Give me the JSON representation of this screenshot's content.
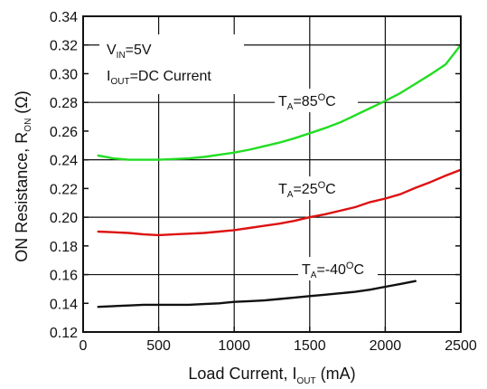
{
  "chart_data": {
    "type": "line",
    "xlabel": {
      "main": "Load Current, I",
      "sub": "OUT",
      "tail": " (mA)"
    },
    "ylabel": {
      "main": "ON Resistance, R",
      "sub": "ON",
      "tail": " (Ω)"
    },
    "xlim": [
      0,
      2500
    ],
    "ylim": [
      0.12,
      0.34
    ],
    "x_ticks": [
      0,
      500,
      1000,
      1500,
      2000,
      2500
    ],
    "y_ticks": [
      0.12,
      0.14,
      0.16,
      0.18,
      0.2,
      0.22,
      0.24,
      0.26,
      0.28,
      0.3,
      0.32,
      0.34
    ],
    "x_tick_labels": [
      "0",
      "500",
      "1000",
      "1500",
      "2000",
      "2500"
    ],
    "y_tick_labels": [
      "0.12",
      "0.14",
      "0.16",
      "0.18",
      "0.20",
      "0.22",
      "0.24",
      "0.26",
      "0.28",
      "0.30",
      "0.32",
      "0.34"
    ],
    "grid": true,
    "conditions": {
      "line1": {
        "main": "V",
        "sub": "IN",
        "tail": "=5V"
      },
      "line2": {
        "main": "I",
        "sub": "OUT",
        "tail": "=DC Current"
      }
    },
    "series": [
      {
        "label": {
          "main": "T",
          "sub": "A",
          "mid": "=85",
          "sup": "O",
          "tail": "C"
        },
        "color": "#22dd22",
        "x": [
          100,
          200,
          300,
          400,
          500,
          600,
          700,
          800,
          900,
          1000,
          1100,
          1200,
          1300,
          1400,
          1500,
          1600,
          1700,
          1800,
          1900,
          2000,
          2100,
          2200,
          2300,
          2400,
          2500
        ],
        "y": [
          0.243,
          0.241,
          0.24,
          0.24,
          0.24,
          0.2405,
          0.241,
          0.242,
          0.2435,
          0.245,
          0.247,
          0.2495,
          0.252,
          0.255,
          0.2585,
          0.262,
          0.266,
          0.271,
          0.276,
          0.281,
          0.2865,
          0.293,
          0.2995,
          0.3065,
          0.32
        ]
      },
      {
        "label": {
          "main": "T",
          "sub": "A",
          "mid": "=25",
          "sup": "O",
          "tail": "C"
        },
        "color": "#dd1111",
        "x": [
          100,
          200,
          300,
          400,
          500,
          600,
          700,
          800,
          900,
          1000,
          1100,
          1200,
          1300,
          1400,
          1500,
          1600,
          1700,
          1800,
          1900,
          2000,
          2100,
          2200,
          2300,
          2400,
          2500
        ],
        "y": [
          0.19,
          0.1895,
          0.189,
          0.188,
          0.1875,
          0.188,
          0.1885,
          0.189,
          0.19,
          0.191,
          0.1925,
          0.194,
          0.1955,
          0.1975,
          0.2,
          0.202,
          0.2045,
          0.207,
          0.2105,
          0.213,
          0.216,
          0.2205,
          0.2245,
          0.229,
          0.233
        ]
      },
      {
        "label": {
          "main": "T",
          "sub": "A",
          "mid": "=-40",
          "sup": "O",
          "tail": "C"
        },
        "color": "#111111",
        "x": [
          100,
          200,
          300,
          400,
          500,
          600,
          700,
          800,
          900,
          1000,
          1100,
          1200,
          1300,
          1400,
          1500,
          1600,
          1700,
          1800,
          1900,
          2000,
          2100,
          2200
        ],
        "y": [
          0.1375,
          0.138,
          0.1385,
          0.139,
          0.139,
          0.139,
          0.139,
          0.1395,
          0.14,
          0.141,
          0.1415,
          0.142,
          0.143,
          0.144,
          0.145,
          0.146,
          0.147,
          0.148,
          0.1495,
          0.1515,
          0.1535,
          0.1555
        ]
      }
    ]
  }
}
